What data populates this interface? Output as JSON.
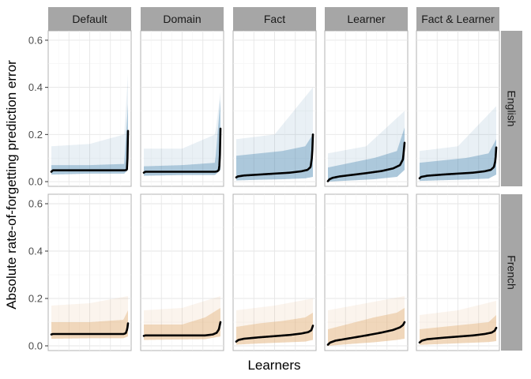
{
  "chart_data": {
    "type": "area",
    "xlabel": "Learners",
    "ylabel": "Absolute rate-of-forgetting prediction error",
    "ylim": [
      -0.02,
      0.64
    ],
    "yticks": [
      0.0,
      0.2,
      0.4,
      0.6
    ],
    "ytick_labels": [
      "0.0",
      "0.2",
      "0.4",
      "0.6"
    ],
    "grid": true,
    "columns": [
      "Default",
      "Domain",
      "Fact",
      "Learner",
      "Fact & Learner"
    ],
    "rows": [
      "English",
      "French"
    ],
    "colors": {
      "English": "#4a86b0",
      "French": "#e0a868",
      "line": "#000000"
    },
    "x_note": "learners sorted by error; x is normalized rank 0-1",
    "panels": [
      {
        "row": "English",
        "column": "Default",
        "mean": {
          "x": [
            0.0,
            0.02,
            0.5,
            0.95,
            0.97,
            0.985,
            0.99,
            0.995,
            1.0
          ],
          "y": [
            0.042,
            0.048,
            0.048,
            0.048,
            0.049,
            0.05,
            0.07,
            0.12,
            0.215
          ]
        },
        "band": {
          "x": [
            0.0,
            0.5,
            0.95,
            1.0
          ],
          "lower": [
            0.03,
            0.034,
            0.034,
            0.05
          ],
          "upper": [
            0.07,
            0.07,
            0.075,
            0.33
          ]
        },
        "spread": {
          "x": [
            0.0,
            0.5,
            0.95,
            1.0
          ],
          "upper": [
            0.15,
            0.16,
            0.2,
            0.46
          ]
        }
      },
      {
        "row": "English",
        "column": "Domain",
        "mean": {
          "x": [
            0.0,
            0.02,
            0.5,
            0.93,
            0.96,
            0.98,
            0.99,
            0.995,
            1.0
          ],
          "y": [
            0.038,
            0.042,
            0.042,
            0.042,
            0.044,
            0.05,
            0.08,
            0.14,
            0.225
          ]
        },
        "band": {
          "x": [
            0.0,
            0.5,
            0.93,
            1.0
          ],
          "lower": [
            0.025,
            0.028,
            0.028,
            0.05
          ],
          "upper": [
            0.065,
            0.07,
            0.08,
            0.35
          ]
        },
        "spread": {
          "x": [
            0.0,
            0.5,
            0.93,
            1.0
          ],
          "upper": [
            0.14,
            0.14,
            0.2,
            0.38
          ]
        }
      },
      {
        "row": "English",
        "column": "Fact",
        "mean": {
          "x": [
            0.0,
            0.02,
            0.1,
            0.3,
            0.5,
            0.7,
            0.85,
            0.93,
            0.97,
            0.99,
            1.0
          ],
          "y": [
            0.018,
            0.022,
            0.026,
            0.03,
            0.034,
            0.038,
            0.044,
            0.05,
            0.062,
            0.11,
            0.2
          ]
        },
        "band": {
          "x": [
            0.0,
            0.3,
            0.6,
            0.9,
            1.0
          ],
          "lower": [
            0.005,
            0.008,
            0.01,
            0.014,
            0.02
          ],
          "upper": [
            0.11,
            0.12,
            0.13,
            0.15,
            0.2
          ]
        },
        "spread": {
          "x": [
            0.0,
            0.5,
            1.0
          ],
          "upper": [
            0.18,
            0.2,
            0.4
          ]
        }
      },
      {
        "row": "English",
        "column": "Learner",
        "mean": {
          "x": [
            0.0,
            0.02,
            0.06,
            0.15,
            0.3,
            0.5,
            0.7,
            0.85,
            0.94,
            0.98,
            1.0
          ],
          "y": [
            0.002,
            0.01,
            0.016,
            0.022,
            0.028,
            0.036,
            0.045,
            0.056,
            0.07,
            0.095,
            0.165
          ]
        },
        "band": {
          "x": [
            0.0,
            0.3,
            0.6,
            0.9,
            1.0
          ],
          "lower": [
            0.0,
            0.005,
            0.01,
            0.02,
            0.05
          ],
          "upper": [
            0.06,
            0.08,
            0.1,
            0.13,
            0.23
          ]
        },
        "spread": {
          "x": [
            0.0,
            0.5,
            1.0
          ],
          "upper": [
            0.12,
            0.15,
            0.3
          ]
        }
      },
      {
        "row": "English",
        "column": "Fact & Learner",
        "mean": {
          "x": [
            0.0,
            0.02,
            0.1,
            0.3,
            0.5,
            0.7,
            0.85,
            0.93,
            0.97,
            0.99,
            1.0
          ],
          "y": [
            0.014,
            0.02,
            0.025,
            0.03,
            0.034,
            0.038,
            0.044,
            0.05,
            0.062,
            0.09,
            0.145
          ]
        },
        "band": {
          "x": [
            0.0,
            0.3,
            0.6,
            0.9,
            1.0
          ],
          "lower": [
            0.003,
            0.006,
            0.009,
            0.013,
            0.03
          ],
          "upper": [
            0.08,
            0.09,
            0.1,
            0.12,
            0.18
          ]
        },
        "spread": {
          "x": [
            0.0,
            0.5,
            1.0
          ],
          "upper": [
            0.13,
            0.15,
            0.32
          ]
        }
      },
      {
        "row": "French",
        "column": "Default",
        "mean": {
          "x": [
            0.0,
            0.02,
            0.5,
            0.94,
            0.97,
            0.99,
            1.0
          ],
          "y": [
            0.048,
            0.05,
            0.05,
            0.05,
            0.053,
            0.07,
            0.095
          ]
        },
        "band": {
          "x": [
            0.0,
            0.5,
            0.94,
            1.0
          ],
          "lower": [
            0.03,
            0.032,
            0.032,
            0.04
          ],
          "upper": [
            0.1,
            0.1,
            0.11,
            0.15
          ]
        },
        "spread": {
          "x": [
            0.0,
            0.5,
            1.0
          ],
          "upper": [
            0.17,
            0.18,
            0.21
          ]
        }
      },
      {
        "row": "French",
        "column": "Domain",
        "mean": {
          "x": [
            0.0,
            0.02,
            0.5,
            0.8,
            0.9,
            0.95,
            0.98,
            1.0
          ],
          "y": [
            0.042,
            0.044,
            0.044,
            0.044,
            0.048,
            0.055,
            0.07,
            0.1
          ]
        },
        "band": {
          "x": [
            0.0,
            0.5,
            0.8,
            1.0
          ],
          "lower": [
            0.025,
            0.027,
            0.028,
            0.04
          ],
          "upper": [
            0.09,
            0.09,
            0.12,
            0.16
          ]
        },
        "spread": {
          "x": [
            0.0,
            0.5,
            0.8,
            1.0
          ],
          "upper": [
            0.15,
            0.16,
            0.19,
            0.21
          ]
        }
      },
      {
        "row": "French",
        "column": "Fact",
        "mean": {
          "x": [
            0.0,
            0.03,
            0.1,
            0.3,
            0.5,
            0.7,
            0.85,
            0.94,
            0.98,
            1.0
          ],
          "y": [
            0.018,
            0.025,
            0.03,
            0.036,
            0.041,
            0.046,
            0.052,
            0.058,
            0.066,
            0.085
          ]
        },
        "band": {
          "x": [
            0.0,
            0.3,
            0.6,
            0.9,
            1.0
          ],
          "lower": [
            0.005,
            0.01,
            0.014,
            0.018,
            0.025
          ],
          "upper": [
            0.08,
            0.095,
            0.105,
            0.12,
            0.14
          ]
        },
        "spread": {
          "x": [
            0.0,
            0.5,
            1.0
          ],
          "upper": [
            0.15,
            0.17,
            0.2
          ]
        }
      },
      {
        "row": "French",
        "column": "Learner",
        "mean": {
          "x": [
            0.0,
            0.03,
            0.1,
            0.3,
            0.5,
            0.7,
            0.85,
            0.94,
            0.98,
            1.0
          ],
          "y": [
            0.005,
            0.014,
            0.022,
            0.033,
            0.044,
            0.056,
            0.067,
            0.078,
            0.088,
            0.1
          ]
        },
        "band": {
          "x": [
            0.0,
            0.3,
            0.6,
            0.9,
            1.0
          ],
          "lower": [
            0.0,
            0.008,
            0.015,
            0.025,
            0.03
          ],
          "upper": [
            0.07,
            0.095,
            0.12,
            0.14,
            0.16
          ]
        },
        "spread": {
          "x": [
            0.0,
            0.5,
            1.0
          ],
          "upper": [
            0.15,
            0.18,
            0.21
          ]
        }
      },
      {
        "row": "French",
        "column": "Fact & Learner",
        "mean": {
          "x": [
            0.0,
            0.03,
            0.1,
            0.3,
            0.5,
            0.7,
            0.85,
            0.94,
            0.98,
            1.0
          ],
          "y": [
            0.014,
            0.022,
            0.028,
            0.034,
            0.039,
            0.044,
            0.05,
            0.056,
            0.064,
            0.076
          ]
        },
        "band": {
          "x": [
            0.0,
            0.3,
            0.6,
            0.9,
            1.0
          ],
          "lower": [
            0.004,
            0.008,
            0.012,
            0.016,
            0.02
          ],
          "upper": [
            0.07,
            0.08,
            0.09,
            0.1,
            0.13
          ]
        },
        "spread": {
          "x": [
            0.0,
            0.5,
            1.0
          ],
          "upper": [
            0.13,
            0.15,
            0.19
          ]
        }
      }
    ]
  }
}
